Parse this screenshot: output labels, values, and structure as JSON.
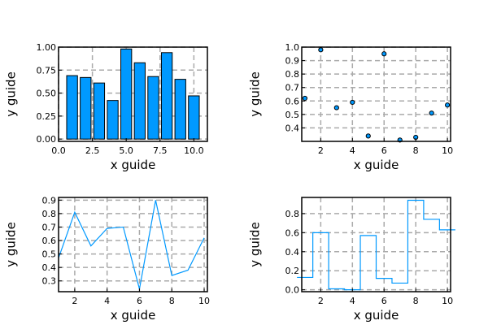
{
  "chart_data": [
    {
      "type": "bar",
      "x": [
        1,
        2,
        3,
        4,
        5,
        6,
        7,
        8,
        9,
        10
      ],
      "values": [
        0.69,
        0.67,
        0.61,
        0.42,
        0.98,
        0.83,
        0.68,
        0.94,
        0.65,
        0.47
      ],
      "xlabel": "x guide",
      "ylabel": "y guide",
      "xlim": [
        0,
        11
      ],
      "ylim": [
        -0.025,
        1.0
      ],
      "xticks": [
        0.0,
        2.5,
        5.0,
        7.5,
        10.0
      ],
      "xtick_labels": [
        "0.0",
        "2.5",
        "5.0",
        "7.5",
        "10.0"
      ],
      "yticks": [
        0.0,
        0.25,
        0.5,
        0.75,
        1.0
      ],
      "ytick_labels": [
        "0.00",
        "0.25",
        "0.50",
        "0.75",
        "1.00"
      ],
      "grid": true,
      "legend": "none",
      "color": "#0099ff"
    },
    {
      "type": "scatter",
      "x": [
        1,
        2,
        3,
        4,
        5,
        6,
        7,
        8,
        9,
        10
      ],
      "values": [
        0.62,
        0.98,
        0.55,
        0.59,
        0.34,
        0.95,
        0.31,
        0.33,
        0.51,
        0.57
      ],
      "xlabel": "x guide",
      "ylabel": "y guide",
      "xlim": [
        0.8,
        10.2
      ],
      "ylim": [
        0.3,
        1.0
      ],
      "xticks": [
        2,
        4,
        6,
        8,
        10
      ],
      "xtick_labels": [
        "2",
        "4",
        "6",
        "8",
        "10"
      ],
      "yticks": [
        0.4,
        0.5,
        0.6,
        0.7,
        0.8,
        0.9,
        1.0
      ],
      "ytick_labels": [
        "0.4",
        "0.5",
        "0.6",
        "0.7",
        "0.8",
        "0.9",
        "1.0"
      ],
      "grid": true,
      "legend": "none",
      "color": "#0099ff"
    },
    {
      "type": "line",
      "x": [
        1,
        2,
        3,
        4,
        5,
        6,
        7,
        8,
        9,
        10
      ],
      "values": [
        0.47,
        0.81,
        0.56,
        0.69,
        0.7,
        0.24,
        0.9,
        0.34,
        0.38,
        0.62
      ],
      "xlabel": "x guide",
      "ylabel": "y guide",
      "xlim": [
        1,
        10.2
      ],
      "ylim": [
        0.22,
        0.92
      ],
      "xticks": [
        2,
        4,
        6,
        8,
        10
      ],
      "xtick_labels": [
        "2",
        "4",
        "6",
        "8",
        "10"
      ],
      "yticks": [
        0.3,
        0.4,
        0.5,
        0.6,
        0.7,
        0.8,
        0.9
      ],
      "ytick_labels": [
        "0.3",
        "0.4",
        "0.5",
        "0.6",
        "0.7",
        "0.8",
        "0.9"
      ],
      "grid": true,
      "legend": "none",
      "color": "#0099ff"
    },
    {
      "type": "line",
      "subtype": "step",
      "x": [
        1,
        2,
        3,
        4,
        5,
        6,
        7,
        8,
        9,
        10
      ],
      "values": [
        0.13,
        0.6,
        0.01,
        0.0,
        0.57,
        0.12,
        0.07,
        0.94,
        0.74,
        0.63
      ],
      "xlabel": "x guide",
      "ylabel": "y guide",
      "xlim": [
        0.8,
        10.2
      ],
      "ylim": [
        -0.02,
        0.97
      ],
      "xticks": [
        2,
        4,
        6,
        8,
        10
      ],
      "xtick_labels": [
        "2",
        "4",
        "6",
        "8",
        "10"
      ],
      "yticks": [
        0.0,
        0.2,
        0.4,
        0.6,
        0.8
      ],
      "ytick_labels": [
        "0.0",
        "0.2",
        "0.4",
        "0.6",
        "0.8"
      ],
      "grid": true,
      "legend": "none",
      "color": "#0099ff"
    }
  ]
}
